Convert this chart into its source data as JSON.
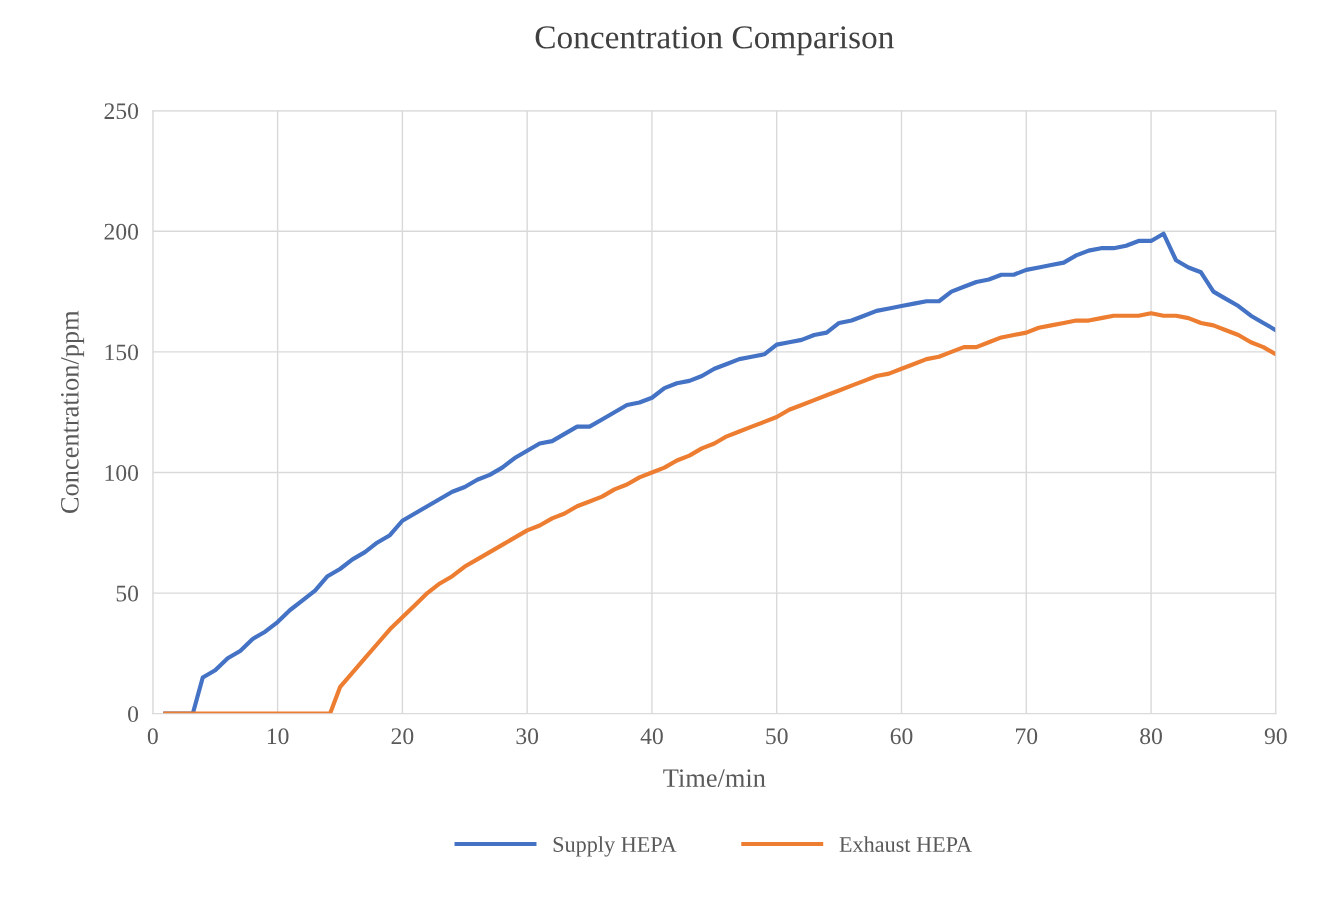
{
  "chart_data": {
    "type": "line",
    "title": "Concentration Comparison",
    "xlabel": "Time/min",
    "ylabel": "Concentration/ppm",
    "xlim": [
      0,
      90
    ],
    "xticks": [
      0,
      10,
      20,
      30,
      40,
      50,
      60,
      70,
      80,
      90
    ],
    "ylim": [
      0,
      250
    ],
    "yticks": [
      0,
      50,
      100,
      150,
      200,
      250
    ],
    "grid": true,
    "legend": "bottom",
    "marker": "none",
    "line_style": "solid",
    "series": [
      {
        "name": "Supply HEPA",
        "color": "#4472c4",
        "x": [
          1,
          2,
          3,
          3.2,
          4,
          5,
          6,
          7,
          8,
          9,
          10,
          11,
          12,
          13,
          14,
          15,
          16,
          17,
          18,
          19,
          20,
          21,
          22,
          23,
          24,
          25,
          26,
          27,
          28,
          29,
          30,
          31,
          32,
          33,
          34,
          35,
          36,
          37,
          38,
          39,
          40,
          41,
          42,
          43,
          44,
          45,
          46,
          47,
          48,
          49,
          50,
          51,
          52,
          53,
          54,
          55,
          56,
          57,
          58,
          59,
          60,
          61,
          62,
          63,
          64,
          65,
          66,
          67,
          68,
          69,
          70,
          71,
          72,
          73,
          74,
          75,
          76,
          77,
          78,
          79,
          80,
          81,
          82,
          83,
          84,
          85,
          86,
          87,
          88,
          89,
          90
        ],
        "values": [
          0,
          0,
          0,
          0,
          15,
          18,
          23,
          26,
          31,
          34,
          38,
          43,
          47,
          51,
          57,
          60,
          64,
          67,
          71,
          74,
          80,
          83,
          86,
          89,
          92,
          94,
          97,
          99,
          102,
          106,
          109,
          112,
          113,
          116,
          119,
          119,
          122,
          125,
          128,
          129,
          131,
          135,
          137,
          138,
          140,
          143,
          145,
          147,
          148,
          149,
          153,
          154,
          155,
          157,
          158,
          162,
          163,
          165,
          167,
          168,
          169,
          170,
          171,
          171,
          175,
          177,
          179,
          180,
          182,
          182,
          184,
          185,
          186,
          187,
          190,
          192,
          193,
          193,
          194,
          196,
          196,
          199,
          188,
          185,
          183,
          175,
          172,
          169,
          165,
          162,
          159
        ]
      },
      {
        "name": "Exhaust HEPA",
        "color": "#ed7d31",
        "x": [
          1,
          5,
          10,
          14,
          14.2,
          15,
          16,
          17,
          18,
          19,
          20,
          21,
          22,
          23,
          24,
          25,
          26,
          27,
          28,
          29,
          30,
          31,
          32,
          33,
          34,
          35,
          36,
          37,
          38,
          39,
          40,
          41,
          42,
          43,
          44,
          45,
          46,
          47,
          48,
          49,
          50,
          51,
          52,
          53,
          54,
          55,
          56,
          57,
          58,
          59,
          60,
          61,
          62,
          63,
          64,
          65,
          66,
          67,
          68,
          69,
          70,
          71,
          72,
          73,
          74,
          75,
          76,
          77,
          78,
          79,
          80,
          81,
          82,
          83,
          84,
          85,
          86,
          87,
          88,
          89,
          90
        ],
        "values": [
          0,
          0,
          0,
          0,
          0,
          11,
          17,
          23,
          29,
          35,
          40,
          45,
          50,
          54,
          57,
          61,
          64,
          67,
          70,
          73,
          76,
          78,
          81,
          83,
          86,
          88,
          90,
          93,
          95,
          98,
          100,
          102,
          105,
          107,
          110,
          112,
          115,
          117,
          119,
          121,
          123,
          126,
          128,
          130,
          132,
          134,
          136,
          138,
          140,
          141,
          143,
          145,
          147,
          148,
          150,
          152,
          152,
          154,
          156,
          157,
          158,
          160,
          161,
          162,
          163,
          163,
          164,
          165,
          165,
          165,
          166,
          165,
          165,
          164,
          162,
          161,
          159,
          157,
          154,
          152,
          149
        ]
      }
    ]
  }
}
